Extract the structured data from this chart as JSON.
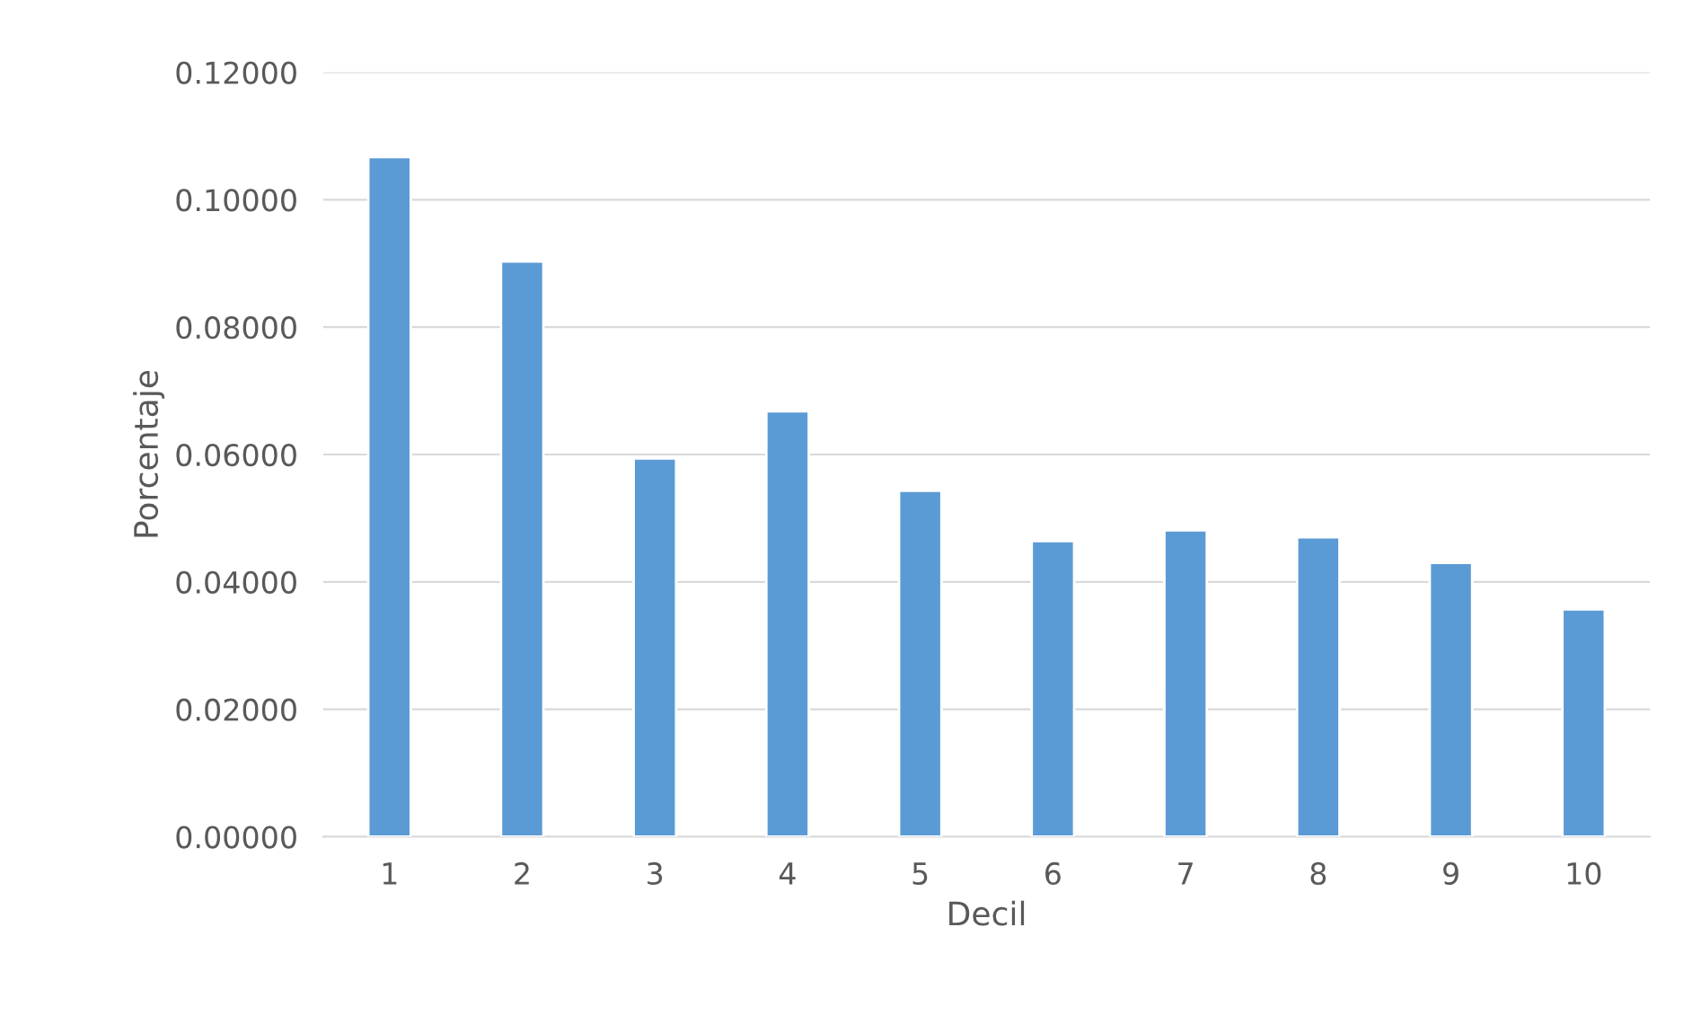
{
  "chart_data": {
    "type": "bar",
    "xlabel": "Decil",
    "ylabel": "Porcentaje",
    "categories": [
      "1",
      "2",
      "3",
      "4",
      "5",
      "6",
      "7",
      "8",
      "9",
      "10"
    ],
    "values": [
      0.1067,
      0.0903,
      0.0594,
      0.0668,
      0.0543,
      0.0464,
      0.0481,
      0.047,
      0.043,
      0.0357
    ],
    "color": "#5b9bd5",
    "ylim": [
      0,
      0.12
    ],
    "yticks": [
      {
        "value": 0,
        "label": "0.00000"
      },
      {
        "value": 0.02,
        "label": "0.02000"
      },
      {
        "value": 0.04,
        "label": "0.04000"
      },
      {
        "value": 0.06,
        "label": "0.06000"
      },
      {
        "value": 0.08,
        "label": "0.08000"
      },
      {
        "value": 0.1,
        "label": "0.10000"
      },
      {
        "value": 0.12,
        "label": "0.12000"
      }
    ],
    "grid": "y",
    "legend": false
  }
}
